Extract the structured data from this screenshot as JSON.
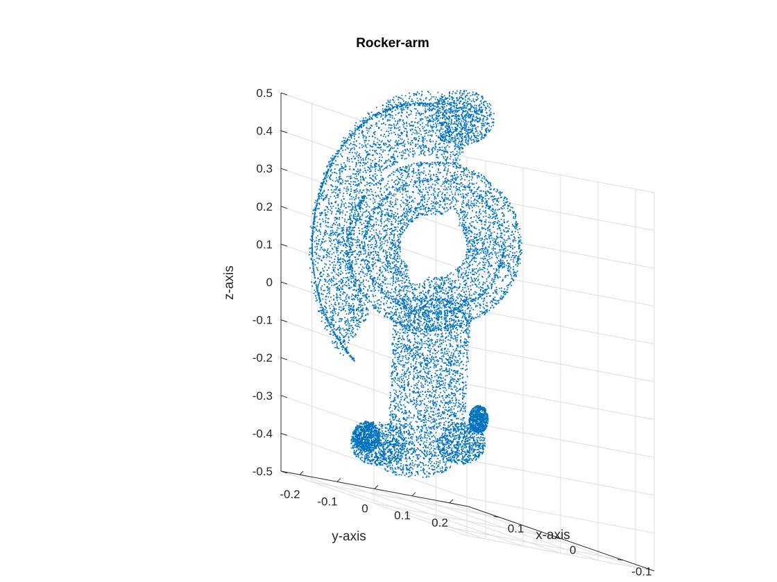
{
  "chart_data": {
    "type": "scatter",
    "title": "Rocker-arm",
    "xlabel": "x-axis",
    "ylabel": "y-axis",
    "zlabel": "z-axis",
    "xlim": [
      -0.15,
      0.15
    ],
    "ylim": [
      -0.25,
      0.25
    ],
    "zlim": [
      -0.5,
      0.5
    ],
    "x_ticks": [
      -0.1,
      0,
      0.1
    ],
    "y_ticks": [
      -0.2,
      -0.1,
      0,
      0.1,
      0.2
    ],
    "z_ticks": [
      -0.5,
      -0.4,
      -0.3,
      -0.2,
      -0.1,
      0,
      0.1,
      0.2,
      0.3,
      0.4,
      0.5
    ],
    "x_tick_labels": [
      "-0.1",
      "0",
      "0.1"
    ],
    "y_tick_labels": [
      "-0.2",
      "-0.1",
      "0",
      "0.1",
      "0.2"
    ],
    "z_tick_labels": [
      "-0.5",
      "-0.4",
      "-0.3",
      "-0.2",
      "-0.1",
      "0",
      "0.1",
      "0.2",
      "0.3",
      "0.4",
      "0.5"
    ],
    "grid": true,
    "marker_color": "#0072BD",
    "point_cloud_description": "rocker-arm mesh vertices: curved arm, ring with central hole, shaft, rounded base"
  }
}
